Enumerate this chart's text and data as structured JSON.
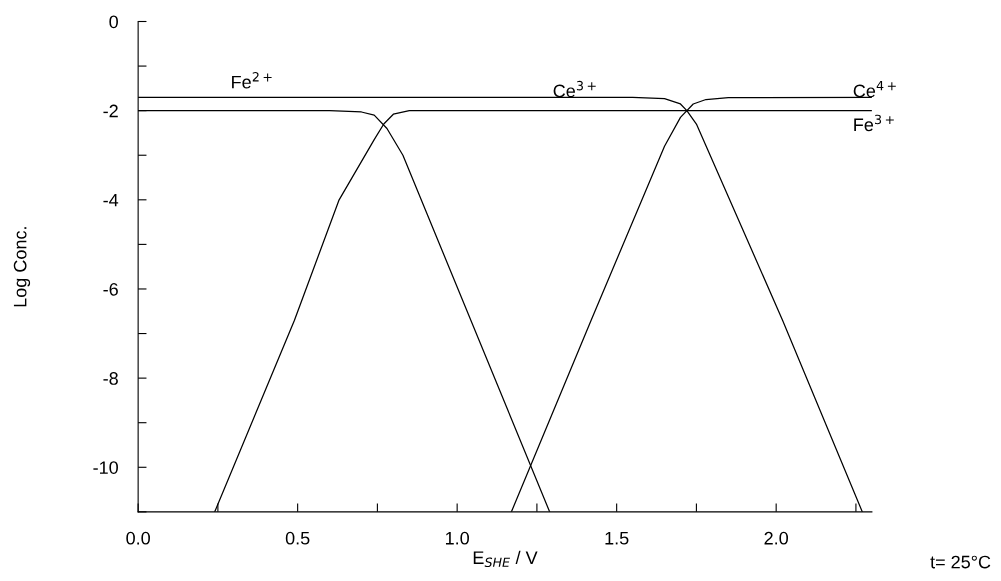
{
  "chart_data": {
    "type": "line",
    "xlabel": "E$_{SHE}$ / V",
    "ylabel": "Log Conc.",
    "xlim": [
      0,
      2.3
    ],
    "ylim": [
      -11,
      0
    ],
    "xticks": [
      {
        "value": 0,
        "label": "0.0"
      },
      {
        "value": 0.25,
        "label": null
      },
      {
        "value": 0.5,
        "label": "0.5"
      },
      {
        "value": 0.75,
        "label": null
      },
      {
        "value": 1.0,
        "label": "1.0"
      },
      {
        "value": 1.25,
        "label": null
      },
      {
        "value": 1.5,
        "label": "1.5"
      },
      {
        "value": 1.75,
        "label": null
      },
      {
        "value": 2.0,
        "label": "2.0"
      },
      {
        "value": 2.25,
        "label": null
      }
    ],
    "yticks": [
      0,
      {
        "value": -1,
        "label": null
      },
      -2,
      {
        "value": -3,
        "label": null
      },
      -4,
      {
        "value": -5,
        "label": null
      },
      -6,
      {
        "value": -7,
        "label": null
      },
      -8,
      {
        "value": -9,
        "label": null
      },
      -10,
      {
        "value": -11,
        "label": null
      }
    ],
    "series": [
      {
        "color": "#000000",
        "x": [
          0,
          0.6,
          0.7,
          0.74,
          0.78,
          0.83,
          1.29
        ],
        "values": [
          -2,
          -2,
          -2.03,
          -2.1,
          -2.4,
          -3.0,
          -11
        ]
      },
      {
        "color": "#000000",
        "x": [
          0.24,
          0.49,
          0.63,
          0.74,
          0.77,
          0.8,
          0.85,
          2.3
        ],
        "values": [
          -11,
          -6.7,
          -4,
          -2.65,
          -2.3,
          -2.08,
          -2.0,
          -2.0
        ]
      },
      {
        "color": "#000000",
        "x": [
          0,
          1.55,
          1.65,
          1.7,
          1.72,
          1.75,
          2.02,
          2.27
        ],
        "values": [
          -1.7,
          -1.7,
          -1.73,
          -1.85,
          -2.0,
          -2.3,
          -6.7,
          -11
        ]
      },
      {
        "color": "#000000",
        "x": [
          1.17,
          1.42,
          1.65,
          1.7,
          1.74,
          1.78,
          1.85,
          2.3
        ],
        "values": [
          -11,
          -6.7,
          -2.8,
          -2.15,
          -1.85,
          -1.75,
          -1.71,
          -1.7
        ]
      }
    ],
    "line_style": "solid",
    "marker": "none",
    "grid": false,
    "legend": false,
    "annotations": [
      "Fe$^{2+}$",
      "Ce$^{3+}$",
      "Ce$^{4+}$",
      "Fe$^{3+}$",
      "t= 25°C"
    ]
  }
}
